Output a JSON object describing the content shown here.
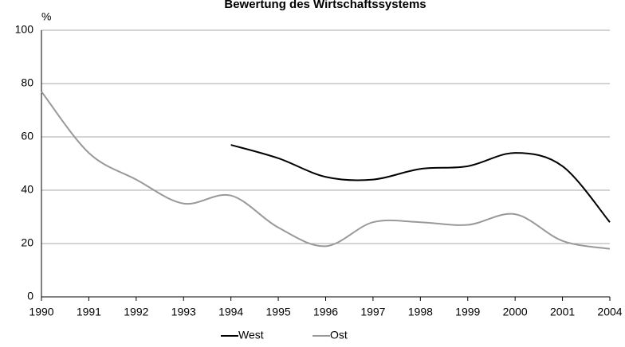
{
  "chart_data": {
    "type": "line",
    "title": "Bewertung des Wirtschaftssystems",
    "y_label": "%",
    "categories": [
      "1990",
      "1991",
      "1992",
      "1993",
      "1994",
      "1995",
      "1996",
      "1997",
      "1998",
      "1999",
      "2000",
      "2001",
      "2004"
    ],
    "series": [
      {
        "name": "West",
        "color": "#000000",
        "values": [
          null,
          null,
          null,
          null,
          57,
          52,
          45,
          44,
          48,
          49,
          54,
          49,
          28
        ]
      },
      {
        "name": "Ost",
        "color": "#999999",
        "values": [
          77,
          54,
          44,
          35,
          38,
          26,
          19,
          28,
          28,
          27,
          31,
          21,
          18
        ]
      }
    ],
    "ylim": [
      0,
      100
    ],
    "yticks": [
      0,
      20,
      40,
      60,
      80,
      100
    ],
    "grid": true,
    "legend": "bottom"
  }
}
